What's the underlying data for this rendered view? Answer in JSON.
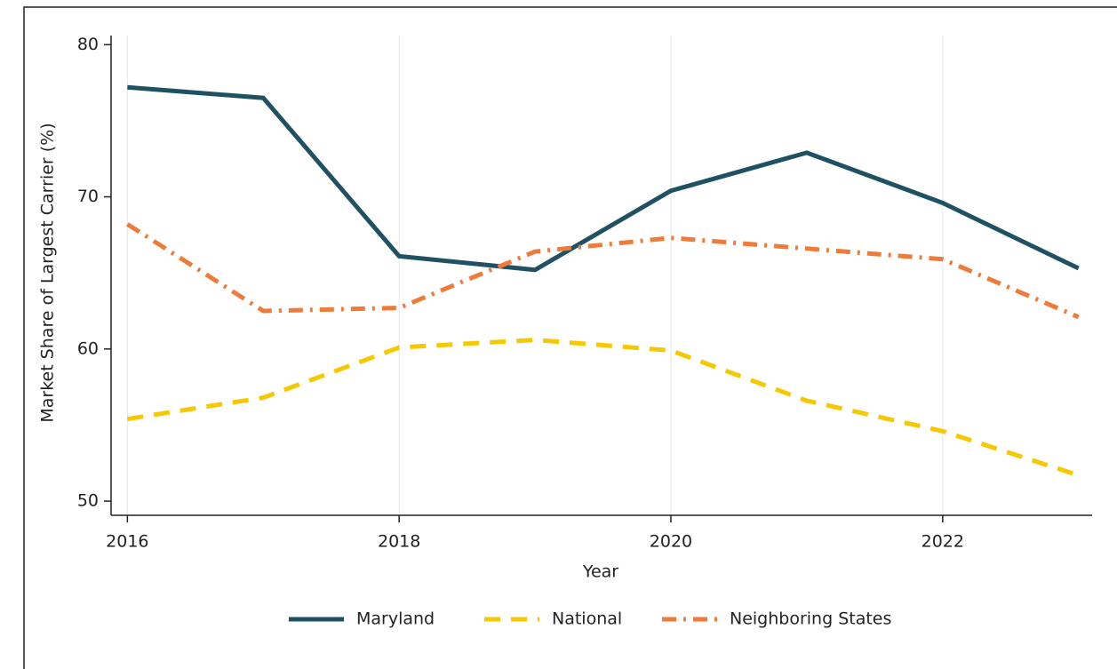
{
  "chart_data": {
    "type": "line",
    "xlabel": "Year",
    "ylabel": "Market Share of Largest Carrier (%)",
    "x": [
      2016,
      2017,
      2018,
      2019,
      2020,
      2021,
      2022,
      2023
    ],
    "series": [
      {
        "name": "Maryland",
        "color": "#1f5163",
        "dash": "solid",
        "values": [
          77.2,
          76.5,
          66.1,
          65.2,
          70.4,
          72.9,
          69.6,
          65.3
        ]
      },
      {
        "name": "National",
        "color": "#f5c800",
        "dash": "dash",
        "values": [
          55.4,
          56.8,
          60.1,
          60.6,
          59.9,
          56.6,
          54.6,
          51.7
        ]
      },
      {
        "name": "Neighboring States",
        "color": "#ee7b3a",
        "dash": "dashdot",
        "values": [
          68.2,
          62.5,
          62.7,
          66.4,
          67.3,
          66.6,
          65.9,
          62.1
        ]
      }
    ],
    "xlim": [
      2015.88,
      2023.1
    ],
    "xticks": [
      2016,
      2018,
      2020,
      2022
    ],
    "ylim": [
      49.07,
      80.6
    ],
    "yticks": [
      50,
      60,
      70,
      80
    ],
    "grid": "x",
    "legend": "bottom"
  }
}
